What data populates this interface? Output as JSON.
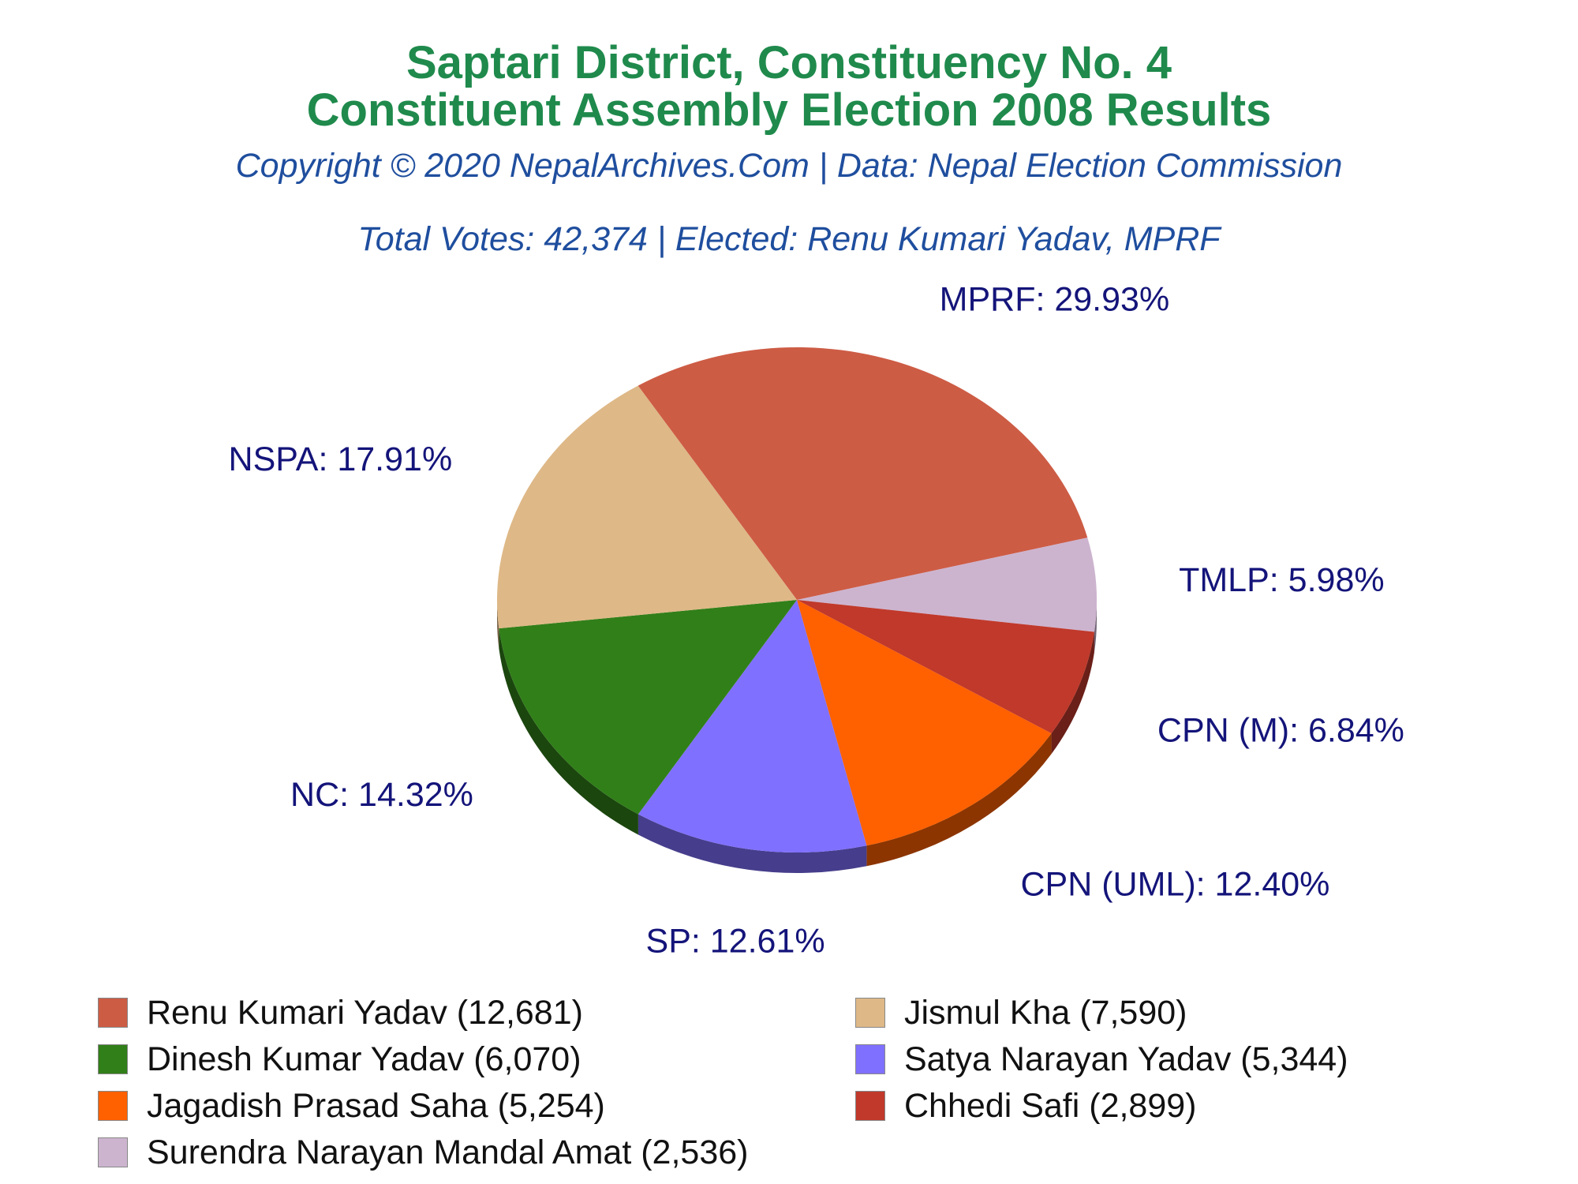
{
  "title": {
    "line1": "Saptari District, Constituency No. 4",
    "line2": "Constituent Assembly Election 2008 Results"
  },
  "copyright": "Copyright © 2020 NepalArchives.Com | Data: Nepal Election Commission",
  "summary": "Total Votes: 42,374 | Elected: Renu Kumari Yadav, MPRF",
  "chart_data": {
    "type": "pie",
    "style": "3d",
    "slices": [
      {
        "party": "MPRF",
        "candidate": "Renu Kumari Yadav",
        "votes": 12681,
        "votes_label": "12,681",
        "percent_label": "29.93%",
        "color": "#cd5c45"
      },
      {
        "party": "TMLP",
        "candidate": "Surendra Narayan Mandal Amat",
        "votes": 2536,
        "votes_label": "2,536",
        "percent_label": "5.98%",
        "color": "#ccb4cf"
      },
      {
        "party": "CPN (M)",
        "candidate": "Chhedi Safi",
        "votes": 2899,
        "votes_label": "2,899",
        "percent_label": "6.84%",
        "color": "#c0392b"
      },
      {
        "party": "CPN (UML)",
        "candidate": "Jagadish Prasad Saha",
        "votes": 5254,
        "votes_label": "5,254",
        "percent_label": "12.40%",
        "color": "#ff6000"
      },
      {
        "party": "SP",
        "candidate": "Satya Narayan Yadav",
        "votes": 5344,
        "votes_label": "5,344",
        "percent_label": "12.61%",
        "color": "#8070ff"
      },
      {
        "party": "NC",
        "candidate": "Dinesh Kumar Yadav",
        "votes": 6070,
        "votes_label": "6,070",
        "percent_label": "14.32%",
        "color": "#317f19"
      },
      {
        "party": "NSPA",
        "candidate": "Jismul Kha",
        "votes": 7590,
        "votes_label": "7,590",
        "percent_label": "17.91%",
        "color": "#deb887"
      }
    ],
    "legend_order": [
      "MPRF",
      "NSPA",
      "NC",
      "SP",
      "CPN (UML)",
      "CPN (M)",
      "TMLP"
    ],
    "legend_placement": "bottom"
  },
  "colors": {
    "title": "#1f8a4c",
    "subtitle": "#1f4e9e",
    "slice_label": "#14147a"
  }
}
